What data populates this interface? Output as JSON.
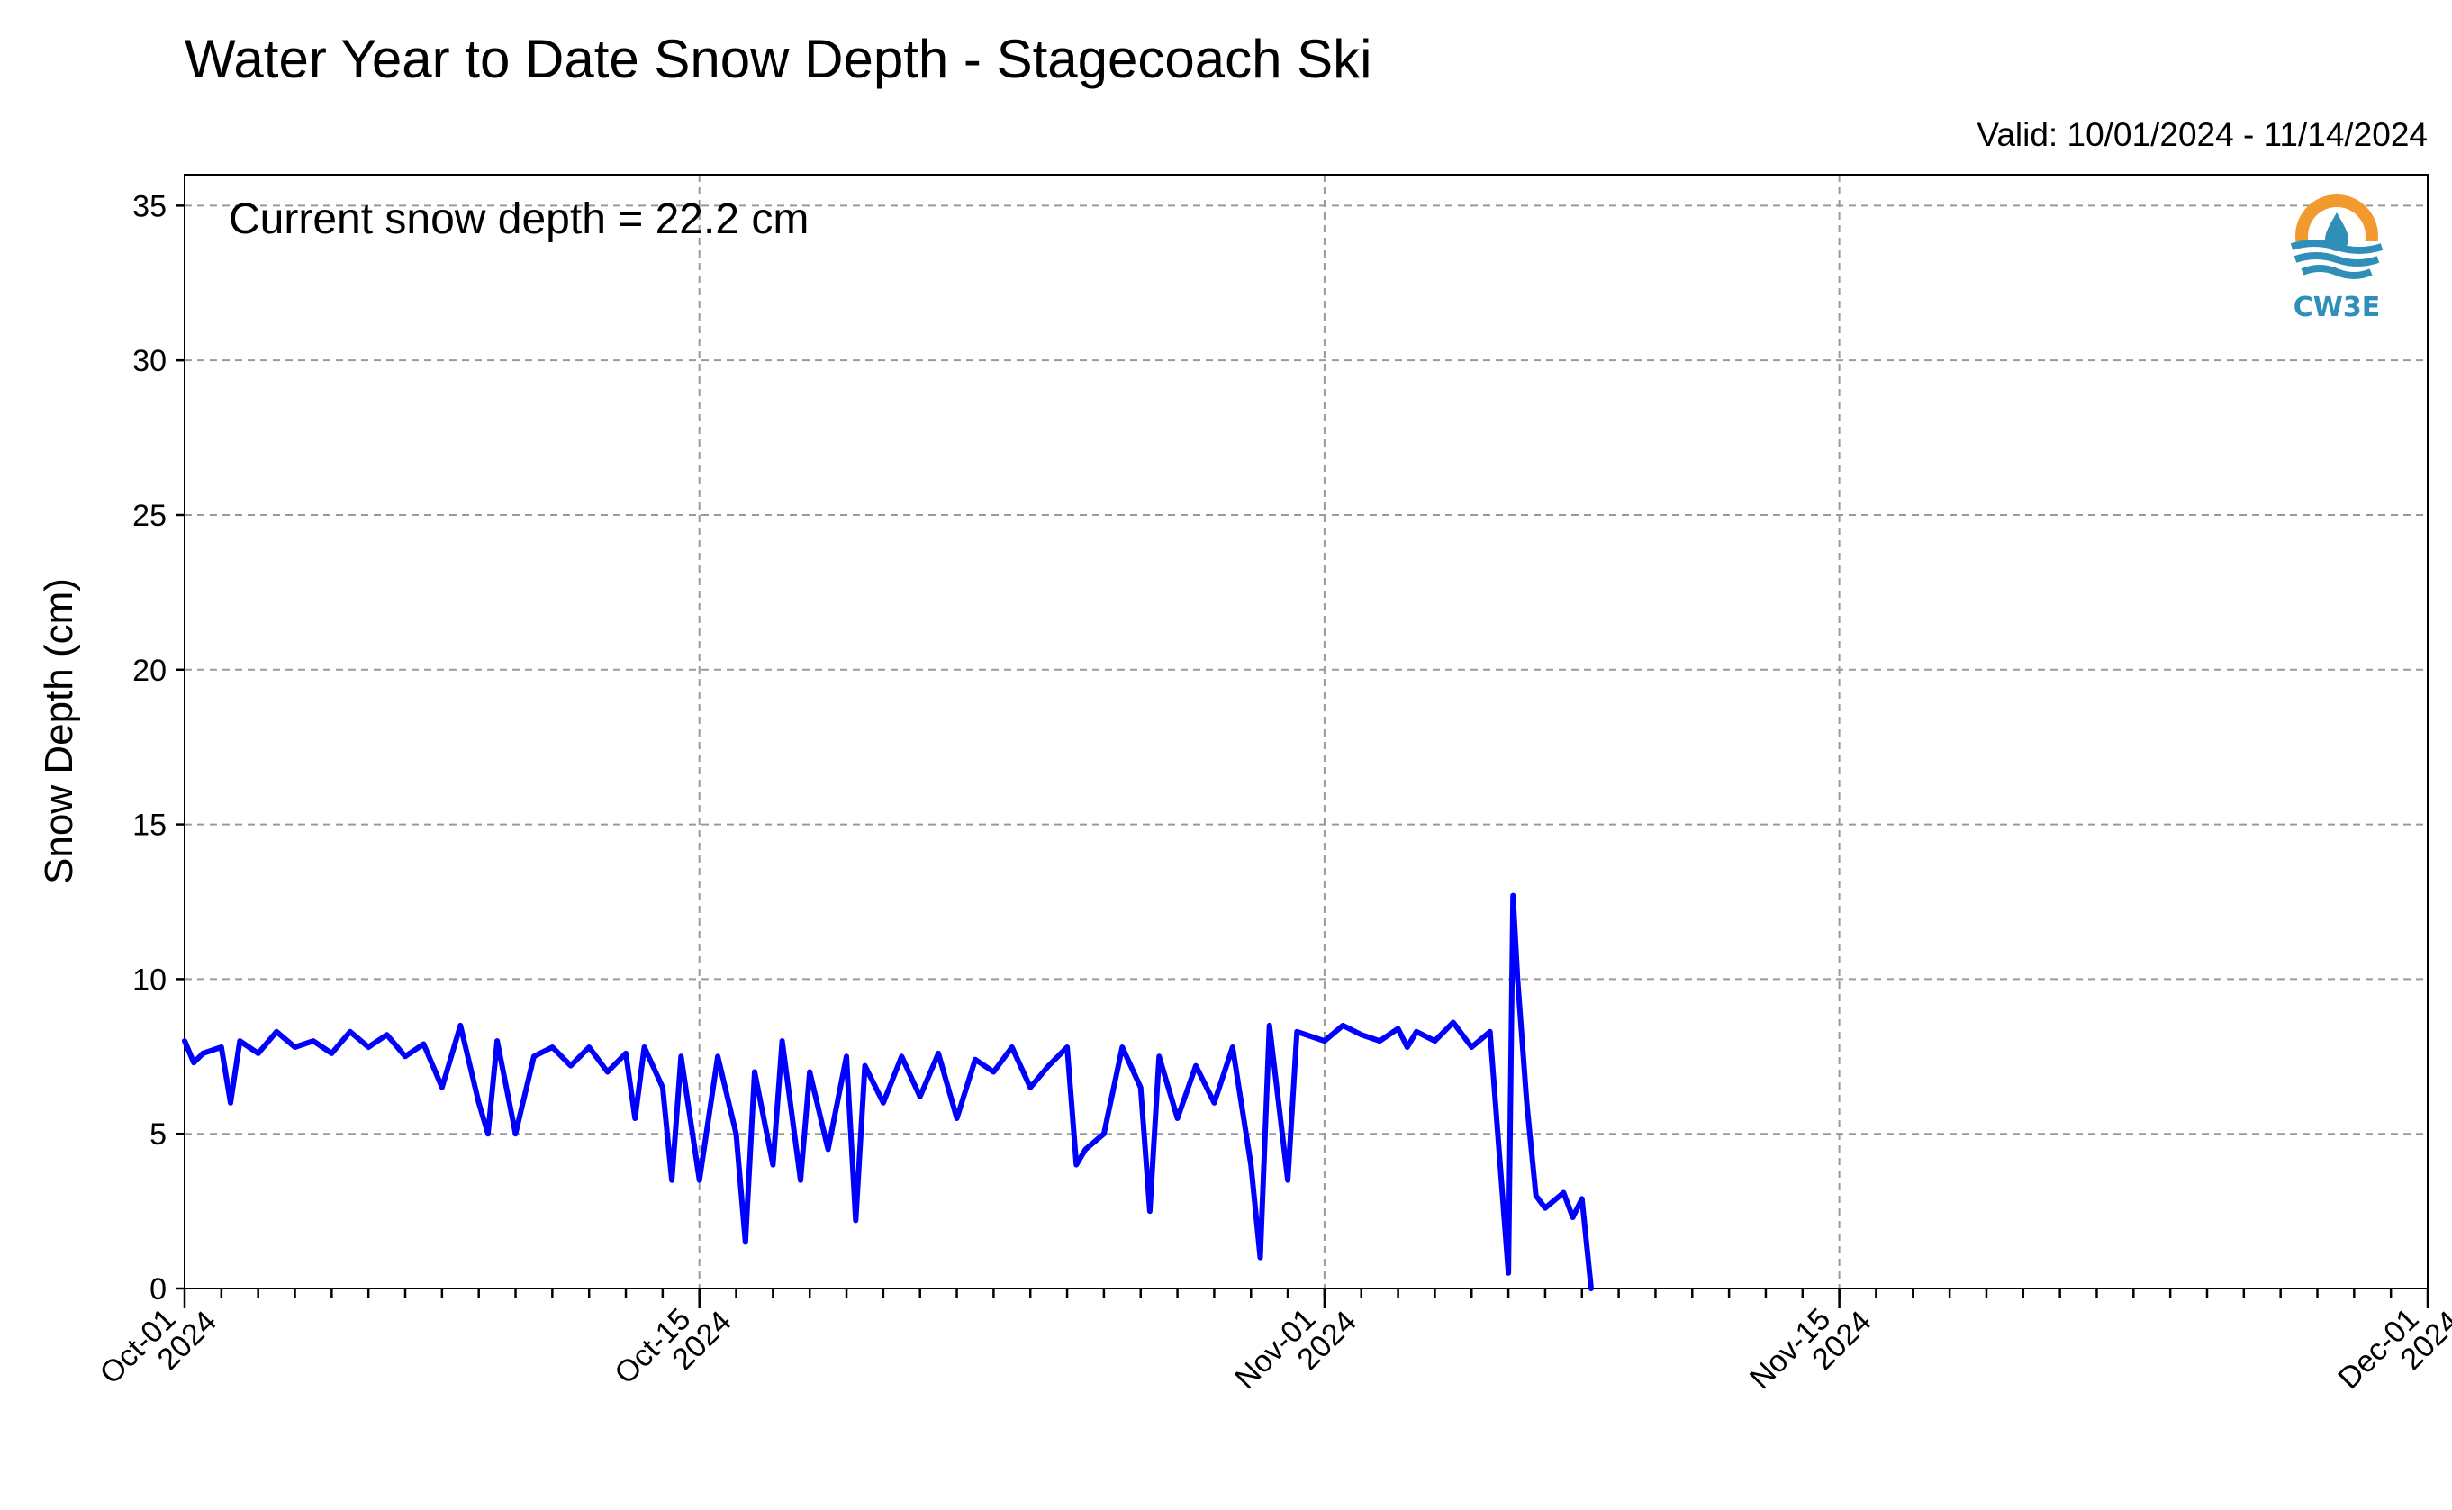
{
  "title": "Water Year to Date Snow Depth - Stagecoach Ski",
  "valid_text": "Valid: 10/01/2024 - 11/14/2024",
  "annotation": "Current snow depth = 22.2 cm",
  "logo_text": "CW3E",
  "colors": {
    "series": "#0000ff",
    "logo_orange": "#f29a2e",
    "logo_blue": "#2f8fb8"
  },
  "chart_data": {
    "type": "line",
    "title": "Water Year to Date Snow Depth - Stagecoach Ski",
    "xlabel": "",
    "ylabel": "Snow Depth (cm)",
    "xlim": [
      "2024-10-01",
      "2024-12-01"
    ],
    "ylim": [
      0,
      36
    ],
    "y_ticks": [
      0,
      5,
      10,
      15,
      20,
      25,
      30,
      35
    ],
    "x_ticks": [
      {
        "date": "2024-10-01",
        "line1": "Oct-01",
        "line2": "2024"
      },
      {
        "date": "2024-10-15",
        "line1": "Oct-15",
        "line2": "2024"
      },
      {
        "date": "2024-11-01",
        "line1": "Nov-01",
        "line2": "2024"
      },
      {
        "date": "2024-11-15",
        "line1": "Nov-15",
        "line2": "2024"
      },
      {
        "date": "2024-12-01",
        "line1": "Dec-01",
        "line2": "2024"
      }
    ],
    "grid": true,
    "series": [
      {
        "segments": [
          [
            [
              "2024-10-01 00:00",
              8.0
            ],
            [
              "2024-10-01 06:00",
              7.3
            ],
            [
              "2024-10-01 12:00",
              7.6
            ],
            [
              "2024-10-02 00:00",
              7.8
            ],
            [
              "2024-10-02 06:00",
              6.0
            ],
            [
              "2024-10-02 12:00",
              8.0
            ],
            [
              "2024-10-03 00:00",
              7.6
            ],
            [
              "2024-10-03 12:00",
              8.3
            ],
            [
              "2024-10-04 00:00",
              7.8
            ],
            [
              "2024-10-04 12:00",
              8.0
            ],
            [
              "2024-10-05 00:00",
              7.6
            ],
            [
              "2024-10-05 12:00",
              8.3
            ],
            [
              "2024-10-06 00:00",
              7.8
            ],
            [
              "2024-10-06 12:00",
              8.2
            ],
            [
              "2024-10-07 00:00",
              7.5
            ],
            [
              "2024-10-07 12:00",
              7.9
            ],
            [
              "2024-10-08 00:00",
              6.5
            ],
            [
              "2024-10-08 12:00",
              8.5
            ],
            [
              "2024-10-09 00:00",
              6.0
            ],
            [
              "2024-10-09 06:00",
              5.0
            ],
            [
              "2024-10-09 12:00",
              8.0
            ],
            [
              "2024-10-10 00:00",
              5.0
            ],
            [
              "2024-10-10 12:00",
              7.5
            ],
            [
              "2024-10-11 00:00",
              7.8
            ],
            [
              "2024-10-11 12:00",
              7.2
            ],
            [
              "2024-10-12 00:00",
              7.8
            ],
            [
              "2024-10-12 12:00",
              7.0
            ],
            [
              "2024-10-13 00:00",
              7.6
            ],
            [
              "2024-10-13 06:00",
              5.5
            ],
            [
              "2024-10-13 12:00",
              7.8
            ],
            [
              "2024-10-14 00:00",
              6.5
            ],
            [
              "2024-10-14 06:00",
              3.5
            ],
            [
              "2024-10-14 12:00",
              7.5
            ],
            [
              "2024-10-15 00:00",
              3.5
            ],
            [
              "2024-10-15 12:00",
              7.5
            ],
            [
              "2024-10-16 00:00",
              5.0
            ],
            [
              "2024-10-16 06:00",
              1.5
            ],
            [
              "2024-10-16 12:00",
              7.0
            ],
            [
              "2024-10-17 00:00",
              4.0
            ],
            [
              "2024-10-17 06:00",
              8.0
            ],
            [
              "2024-10-17 18:00",
              3.5
            ],
            [
              "2024-10-18 00:00",
              7.0
            ],
            [
              "2024-10-18 12:00",
              4.5
            ],
            [
              "2024-10-19 00:00",
              7.5
            ],
            [
              "2024-10-19 06:00",
              2.2
            ],
            [
              "2024-10-19 12:00",
              7.2
            ],
            [
              "2024-10-20 00:00",
              6.0
            ],
            [
              "2024-10-20 12:00",
              7.5
            ],
            [
              "2024-10-21 00:00",
              6.2
            ],
            [
              "2024-10-21 12:00",
              7.6
            ],
            [
              "2024-10-22 00:00",
              5.5
            ],
            [
              "2024-10-22 12:00",
              7.4
            ],
            [
              "2024-10-23 00:00",
              7.0
            ],
            [
              "2024-10-23 12:00",
              7.8
            ],
            [
              "2024-10-24 00:00",
              6.5
            ],
            [
              "2024-10-24 12:00",
              7.2
            ],
            [
              "2024-10-25 00:00",
              7.8
            ],
            [
              "2024-10-25 06:00",
              4.0
            ],
            [
              "2024-10-25 12:00",
              4.5
            ],
            [
              "2024-10-26 00:00",
              5.0
            ],
            [
              "2024-10-26 12:00",
              7.8
            ],
            [
              "2024-10-27 00:00",
              6.5
            ],
            [
              "2024-10-27 06:00",
              2.5
            ],
            [
              "2024-10-27 12:00",
              7.5
            ],
            [
              "2024-10-28 00:00",
              5.5
            ],
            [
              "2024-10-28 12:00",
              7.2
            ],
            [
              "2024-10-29 00:00",
              6.0
            ],
            [
              "2024-10-29 12:00",
              7.8
            ],
            [
              "2024-10-30 00:00",
              4.0
            ],
            [
              "2024-10-30 06:00",
              1.0
            ],
            [
              "2024-10-30 12:00",
              8.5
            ],
            [
              "2024-10-31 00:00",
              3.5
            ],
            [
              "2024-10-31 06:00",
              8.3
            ],
            [
              "2024-11-01 00:00",
              8.0
            ],
            [
              "2024-11-01 12:00",
              8.5
            ],
            [
              "2024-11-02 00:00",
              8.2
            ],
            [
              "2024-11-02 12:00",
              8.0
            ],
            [
              "2024-11-03 00:00",
              8.4
            ],
            [
              "2024-11-03 06:00",
              7.8
            ],
            [
              "2024-11-03 12:00",
              8.3
            ],
            [
              "2024-11-04 00:00",
              8.0
            ],
            [
              "2024-11-04 12:00",
              8.6
            ],
            [
              "2024-11-05 00:00",
              7.8
            ],
            [
              "2024-11-05 12:00",
              8.3
            ],
            [
              "2024-11-06 00:00",
              0.5
            ],
            [
              "2024-11-06 03:00",
              12.7
            ],
            [
              "2024-11-06 06:00",
              10.0
            ],
            [
              "2024-11-06 12:00",
              6.0
            ],
            [
              "2024-11-06 18:00",
              3.0
            ],
            [
              "2024-11-07 00:00",
              2.6
            ],
            [
              "2024-11-07 12:00",
              3.1
            ],
            [
              "2024-11-07 18:00",
              2.3
            ],
            [
              "2024-11-08 00:00",
              2.9
            ],
            [
              "2024-11-08 06:00",
              0.0
            ]
          ]
        ]
      }
    ]
  }
}
